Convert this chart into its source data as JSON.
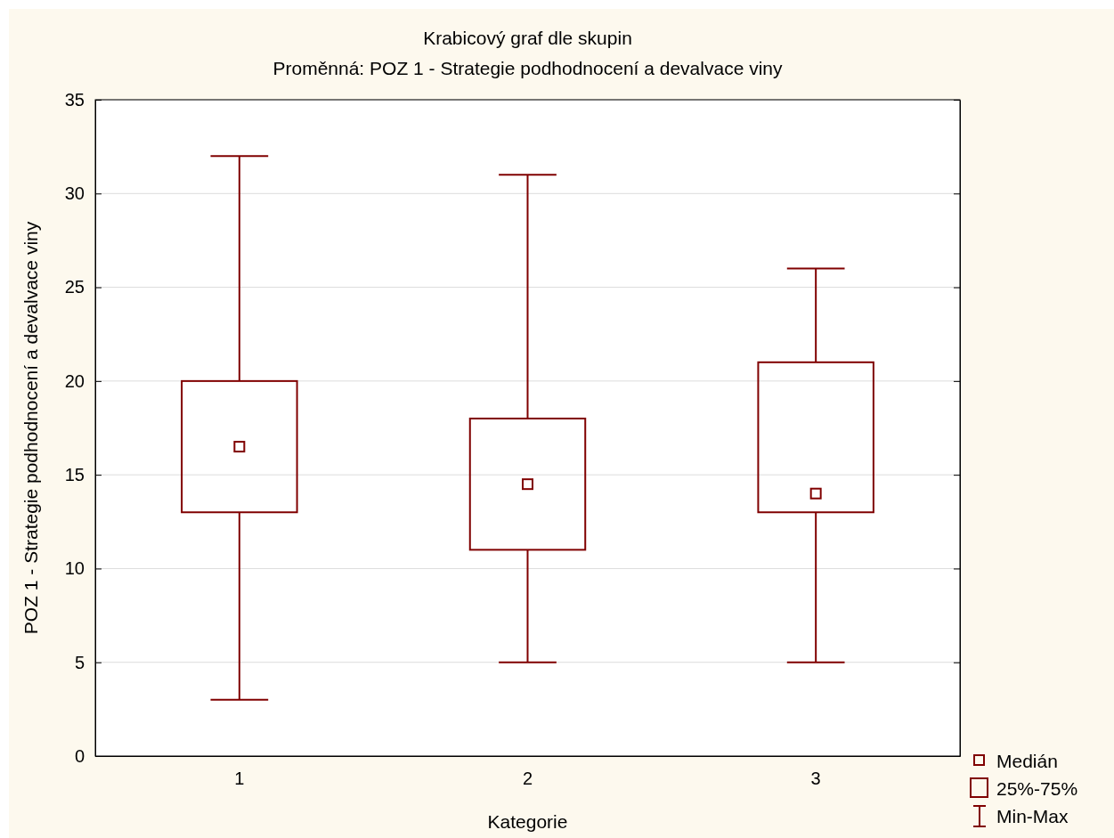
{
  "chart_data": {
    "type": "box",
    "title": "Krabicový graf dle skupin",
    "subtitle": "Proměnná: POZ 1 - Strategie podhodnocení a devalvace viny",
    "xlabel": "Kategorie",
    "ylabel": "POZ 1 - Strategie podhodnocení a devalvace viny",
    "categories": [
      "1",
      "2",
      "3"
    ],
    "boxes": [
      {
        "low": 3,
        "q1": 13,
        "median": 16.5,
        "q3": 20,
        "high": 32
      },
      {
        "low": 5,
        "q1": 11,
        "median": 14.5,
        "q3": 18,
        "high": 31
      },
      {
        "low": 5,
        "q1": 13,
        "median": 14,
        "q3": 21,
        "high": 26
      }
    ],
    "color": "#800000",
    "ylim": [
      0,
      35
    ],
    "yticks": [
      0,
      5,
      10,
      15,
      20,
      25,
      30,
      35
    ],
    "grid": "y",
    "annotations": [
      "Medián",
      "25%-75%",
      "Min-Max"
    ]
  }
}
